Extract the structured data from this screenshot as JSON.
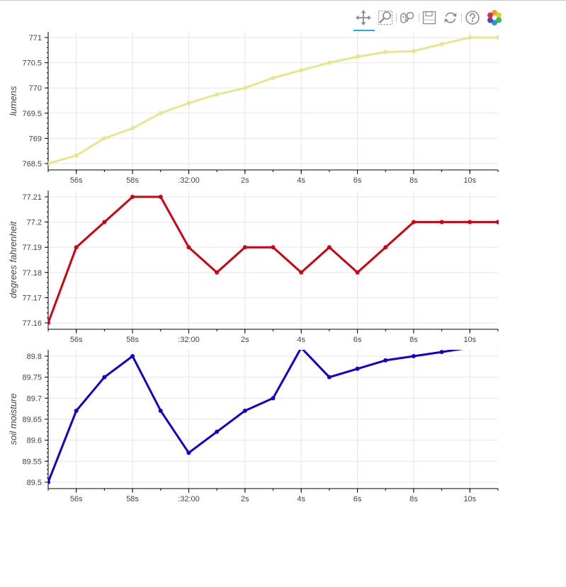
{
  "toolbar": {
    "tools": [
      {
        "name": "pan-tool",
        "icon": "move-icon",
        "active": true
      },
      {
        "name": "box-zoom-tool",
        "icon": "box-zoom-icon",
        "active": false
      },
      {
        "name": "wheel-zoom-tool",
        "icon": "wheel-zoom-icon",
        "active": false
      },
      {
        "name": "save-tool",
        "icon": "save-icon",
        "active": false
      },
      {
        "name": "reset-tool",
        "icon": "reset-icon",
        "active": false
      },
      {
        "name": "help-tool",
        "icon": "help-icon",
        "active": false
      },
      {
        "name": "bokeh-logo",
        "icon": "bokeh-logo-icon",
        "active": false
      }
    ]
  },
  "chart_data": [
    {
      "type": "line",
      "ylabel": "lumens",
      "color": "#e6e691",
      "markers": true,
      "grid": true,
      "x_ticks": [
        "56s",
        "58s",
        ":32:00",
        "2s",
        "4s",
        "6s",
        "8s",
        "10s"
      ],
      "y_ticks": [
        "768.5",
        "769",
        "769.5",
        "770",
        "770.5",
        "771"
      ],
      "ylim": [
        768.5,
        771
      ],
      "x": [
        -6,
        -5,
        -4,
        -3,
        -2,
        -1,
        0,
        1,
        2,
        3,
        4,
        5,
        6,
        7,
        8,
        9,
        10
      ],
      "values": [
        768.5,
        768.66,
        769.0,
        769.2,
        769.5,
        769.7,
        769.87,
        770.0,
        770.2,
        770.35,
        770.5,
        770.62,
        770.71,
        770.73,
        770.87,
        771.0,
        771.0
      ]
    },
    {
      "type": "line",
      "ylabel": "degrees fahrenheit",
      "color": "#cc0011",
      "markers": true,
      "grid": true,
      "x_ticks": [
        "56s",
        "58s",
        ":32:00",
        "2s",
        "4s",
        "6s",
        "8s",
        "10s"
      ],
      "y_ticks": [
        "77.16",
        "77.17",
        "77.18",
        "77.19",
        "77.2",
        "77.21"
      ],
      "ylim": [
        77.16,
        77.21
      ],
      "x": [
        -6,
        -5,
        -4,
        -3,
        -2,
        -1,
        0,
        1,
        2,
        3,
        4,
        5,
        6,
        7,
        8,
        9,
        10
      ],
      "values": [
        77.16,
        77.19,
        77.2,
        77.21,
        77.21,
        77.19,
        77.18,
        77.19,
        77.19,
        77.18,
        77.19,
        77.18,
        77.19,
        77.2,
        77.2,
        77.2,
        77.2
      ]
    },
    {
      "type": "line",
      "ylabel": "soil moisture",
      "color": "#1100cc",
      "markers": true,
      "grid": true,
      "x_ticks": [
        "56s",
        "58s",
        ":32:00",
        "2s",
        "4s",
        "6s",
        "8s",
        "10s"
      ],
      "y_ticks": [
        "89.5",
        "89.55",
        "89.6",
        "89.65",
        "89.7",
        "89.75",
        "89.8"
      ],
      "ylim": [
        89.5,
        89.82
      ],
      "x": [
        -6,
        -5,
        -4,
        -3,
        -2,
        -1,
        0,
        1,
        2,
        3,
        4,
        5,
        6,
        7,
        8,
        9,
        10
      ],
      "values": [
        89.5,
        89.67,
        89.75,
        89.8,
        89.67,
        89.57,
        89.62,
        89.67,
        89.7,
        89.82,
        89.75,
        89.77,
        89.79,
        89.8,
        89.81,
        89.82,
        89.82
      ]
    }
  ]
}
